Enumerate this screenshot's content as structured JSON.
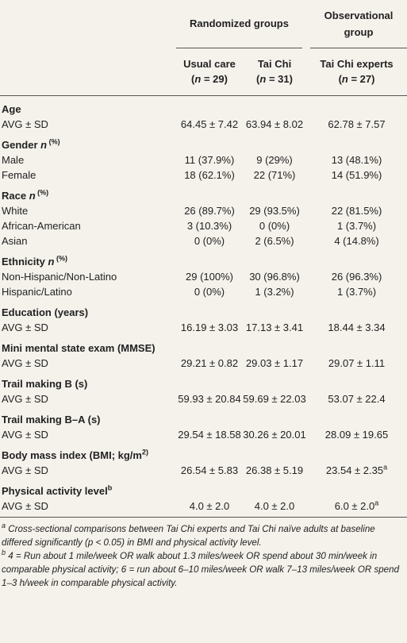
{
  "header": {
    "randomized": "Randomized groups",
    "observational": "Observational group",
    "columns": [
      [
        "Usual care",
        "(",
        "n",
        " = 29)"
      ],
      [
        "Tai Chi",
        "(",
        "n",
        " = 31)"
      ],
      [
        "Tai Chi experts",
        "(",
        "n",
        " = 27)"
      ]
    ]
  },
  "sections": [
    {
      "heading": "Age",
      "rows": [
        [
          "AVG ± SD",
          "64.45 ± 7.42",
          "63.94 ± 8.02",
          "62.78 ± 7.57"
        ]
      ]
    },
    {
      "heading": [
        "Gender ",
        "n",
        " (%)"
      ],
      "rows": [
        [
          "Male",
          "11 (37.9%)",
          "9 (29%)",
          "13 (48.1%)"
        ],
        [
          "Female",
          "18 (62.1%)",
          "22 (71%)",
          "14 (51.9%)"
        ]
      ]
    },
    {
      "heading": [
        "Race ",
        "n",
        " (%)"
      ],
      "rows": [
        [
          "White",
          "26 (89.7%)",
          "29 (93.5%)",
          "22 (81.5%)"
        ],
        [
          "African-American",
          "3 (10.3%)",
          "0 (0%)",
          "1 (3.7%)"
        ],
        [
          "Asian",
          "0 (0%)",
          "2 (6.5%)",
          "4 (14.8%)"
        ]
      ]
    },
    {
      "heading": [
        "Ethnicity ",
        "n",
        " (%)"
      ],
      "rows": [
        [
          "Non-Hispanic/Non-Latino",
          "29 (100%)",
          "30 (96.8%)",
          "26 (96.3%)"
        ],
        [
          "Hispanic/Latino",
          "0 (0%)",
          "1 (3.2%)",
          "1 (3.7%)"
        ]
      ]
    },
    {
      "heading": "Education (years)",
      "rows": [
        [
          "AVG ± SD",
          "16.19 ± 3.03",
          "17.13 ± 3.41",
          "18.44 ± 3.34"
        ]
      ]
    },
    {
      "heading": "Mini mental state exam (MMSE)",
      "rows": [
        [
          "AVG ± SD",
          "29.21 ± 0.82",
          "29.03 ± 1.17",
          "29.07 ± 1.11"
        ]
      ]
    },
    {
      "heading": "Trail making B (s)",
      "rows": [
        [
          "AVG ± SD",
          "59.93 ± 20.84",
          "59.69 ± 22.03",
          "53.07 ± 22.4"
        ]
      ]
    },
    {
      "heading": "Trail making B–A (s)",
      "rows": [
        [
          "AVG ± SD",
          "29.54 ± 18.58",
          "30.26 ± 20.01",
          "28.09 ± 19.65"
        ]
      ]
    },
    {
      "heading": [
        "Body mass index (BMI; kg/m",
        "2",
        ")"
      ],
      "rows": [
        [
          "AVG ± SD",
          "26.54 ± 5.83",
          "26.38 ± 5.19",
          [
            "23.54 ± 2.35",
            "a"
          ]
        ]
      ]
    },
    {
      "heading": [
        "Physical activity level",
        "b"
      ],
      "rows": [
        [
          "AVG ± SD",
          "4.0 ± 2.0",
          "4.0 ± 2.0",
          [
            "6.0 ± 2.0",
            "a"
          ]
        ]
      ]
    }
  ],
  "footnotes": [
    [
      "a",
      " Cross-sectional comparisons between Tai Chi experts and Tai Chi naïve adults at baseline differed significantly (p < 0.05) in BMI and physical activity level."
    ],
    [
      "b",
      " 4 = Run about 1 mile/week OR walk about 1.3 miles/week OR spend about 30 min/week in comparable physical activity; 6 = run about 6–10 miles/week OR walk 7–13 miles/week OR spend 1–3 h/week in comparable physical activity."
    ]
  ]
}
